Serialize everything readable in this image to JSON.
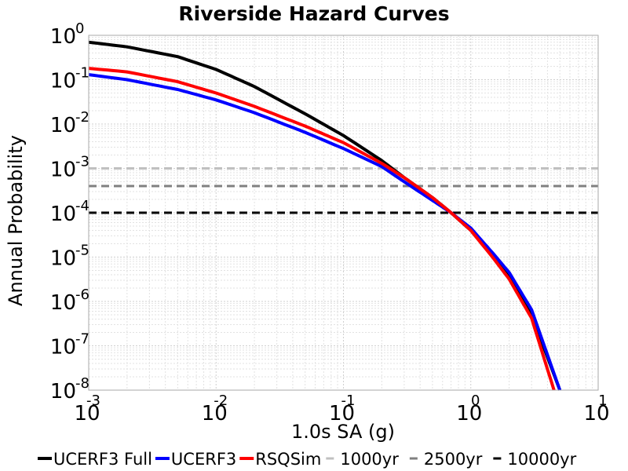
{
  "chart_data": {
    "type": "line",
    "title": "Riverside Hazard Curves",
    "xlabel": "1.0s SA (g)",
    "ylabel": "Annual Probability",
    "xscale": "log",
    "yscale": "log",
    "xlim": [
      0.001,
      10
    ],
    "ylim": [
      1e-08,
      1
    ],
    "grid": true,
    "legend_position": "bottom",
    "x_ticks": [
      {
        "base": "10",
        "exp": "-3"
      },
      {
        "base": "10",
        "exp": "-2"
      },
      {
        "base": "10",
        "exp": "-1"
      },
      {
        "base": "10",
        "exp": "0"
      },
      {
        "base": "10",
        "exp": "1"
      }
    ],
    "y_ticks": [
      {
        "base": "10",
        "exp": "0"
      },
      {
        "base": "10",
        "exp": "-1"
      },
      {
        "base": "10",
        "exp": "-2"
      },
      {
        "base": "10",
        "exp": "-3"
      },
      {
        "base": "10",
        "exp": "-4"
      },
      {
        "base": "10",
        "exp": "-5"
      },
      {
        "base": "10",
        "exp": "-6"
      },
      {
        "base": "10",
        "exp": "-7"
      },
      {
        "base": "10",
        "exp": "-8"
      }
    ],
    "series": [
      {
        "name": "UCERF3 Full",
        "color": "#000000",
        "style": "solid",
        "x": [
          0.001,
          0.002,
          0.005,
          0.01,
          0.02,
          0.05,
          0.1,
          0.2,
          0.3,
          0.5,
          0.7,
          1.0,
          1.5,
          2.0,
          3.0,
          5.0
        ],
        "y": [
          0.7,
          0.55,
          0.33,
          0.17,
          0.07,
          0.017,
          0.0055,
          0.0015,
          0.00062,
          0.00022,
          0.0001,
          4e-05,
          1e-05,
          3.5e-06,
          5e-07,
          1e-08
        ]
      },
      {
        "name": "UCERF3",
        "color": "#0000ff",
        "style": "solid",
        "x": [
          0.001,
          0.002,
          0.005,
          0.01,
          0.02,
          0.05,
          0.1,
          0.2,
          0.3,
          0.5,
          0.7,
          1.0,
          1.5,
          2.0,
          3.0,
          5.0
        ],
        "y": [
          0.13,
          0.1,
          0.06,
          0.035,
          0.018,
          0.0065,
          0.0028,
          0.0011,
          0.0005,
          0.00019,
          0.0001,
          4.5e-05,
          1.2e-05,
          4.5e-06,
          6.5e-07,
          1e-08
        ]
      },
      {
        "name": "RSQSim",
        "color": "#ff0000",
        "style": "solid",
        "x": [
          0.001,
          0.002,
          0.005,
          0.01,
          0.02,
          0.05,
          0.1,
          0.2,
          0.3,
          0.5,
          0.7,
          1.0,
          1.5,
          2.0,
          3.0,
          4.5
        ],
        "y": [
          0.18,
          0.15,
          0.09,
          0.05,
          0.025,
          0.009,
          0.0038,
          0.0013,
          0.00062,
          0.00022,
          0.0001,
          4e-05,
          9.5e-06,
          3.2e-06,
          4.2e-07,
          1e-08
        ]
      },
      {
        "name": "1000yr",
        "color": "#c0c0c0",
        "style": "dashed",
        "x": [
          0.001,
          10
        ],
        "y": [
          0.001,
          0.001
        ]
      },
      {
        "name": "2500yr",
        "color": "#808080",
        "style": "dashed",
        "x": [
          0.001,
          10
        ],
        "y": [
          0.0004,
          0.0004
        ]
      },
      {
        "name": "10000yr",
        "color": "#000000",
        "style": "dashed",
        "x": [
          0.001,
          10
        ],
        "y": [
          0.0001,
          0.0001
        ]
      }
    ]
  }
}
